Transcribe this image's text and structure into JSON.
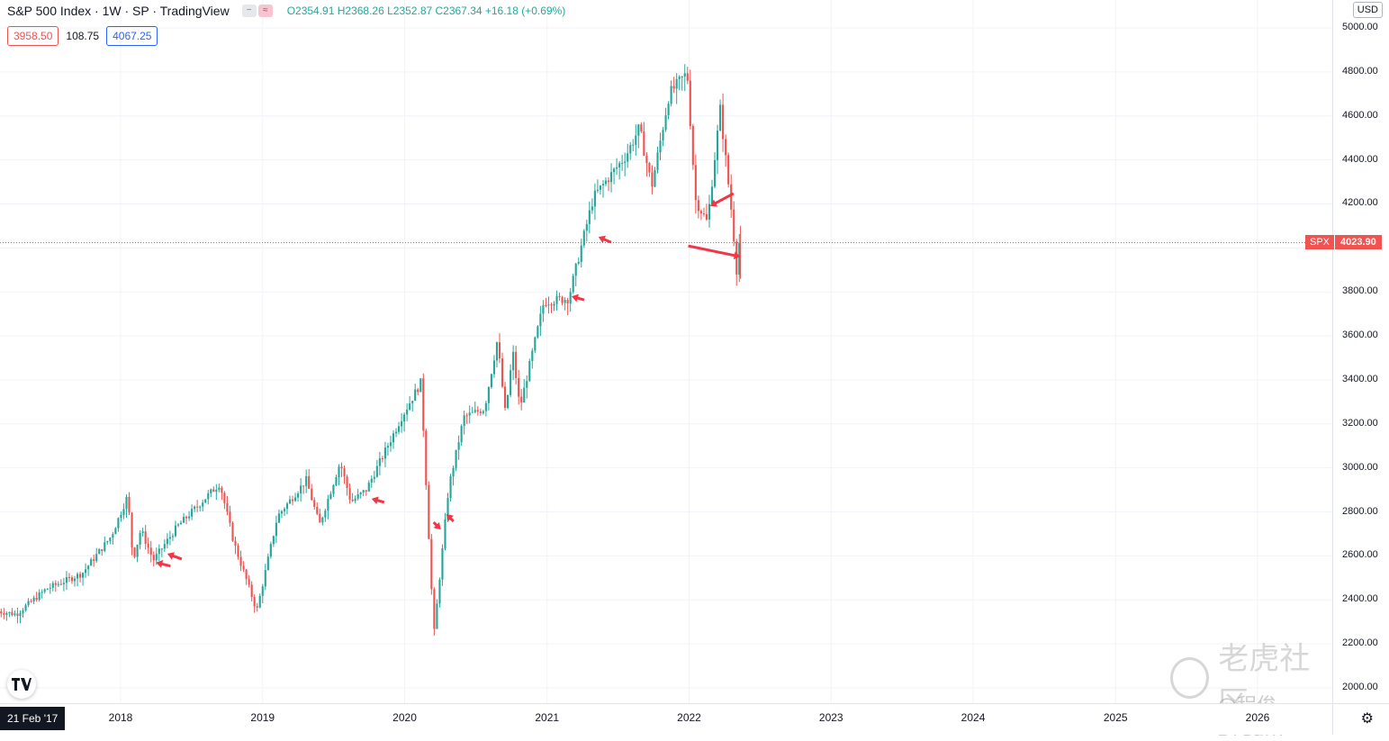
{
  "header": {
    "title": "S&P 500 Index · 1W · SP · TradingView",
    "ohlc": "O2354.91 H2368.26 L2352.87 C2367.34 +16.18 (+0.69%)"
  },
  "indicator": {
    "left": "3958.50",
    "mid": "108.75",
    "right": "4067.25"
  },
  "price_axis": {
    "currency": "USD",
    "current_symbol": "SPX",
    "current_value": "4023.90"
  },
  "time_axis": {
    "start_label": "21 Feb '17"
  },
  "watermark": {
    "main": "老虎社区",
    "sub": "@程俊Dream"
  },
  "colors": {
    "up": "#26a69a",
    "down": "#ef5350",
    "arrow": "#f23645",
    "grid": "#f0f3fa"
  },
  "chart_data": {
    "type": "candlestick",
    "instrument": "S&P 500 Index",
    "interval": "1W",
    "ylim": [
      2000,
      5000
    ],
    "yticks": [
      "5000.00",
      "4800.00",
      "4600.00",
      "4400.00",
      "4200.00",
      "4000.00",
      "3800.00",
      "3600.00",
      "3400.00",
      "3200.00",
      "3000.00",
      "2800.00",
      "2600.00",
      "2400.00",
      "2200.00",
      "2000.00"
    ],
    "xticks": [
      "2018",
      "2019",
      "2020",
      "2021",
      "2022",
      "2023",
      "2024",
      "2025",
      "2026"
    ],
    "last_price": 4023.9,
    "price_path": [
      [
        "2017-02-21",
        2350
      ],
      [
        "2017-04-15",
        2335
      ],
      [
        "2017-07-01",
        2450
      ],
      [
        "2017-10-01",
        2520
      ],
      [
        "2017-12-15",
        2690
      ],
      [
        "2018-01-26",
        2873
      ],
      [
        "2018-02-09",
        2580
      ],
      [
        "2018-03-01",
        2720
      ],
      [
        "2018-04-02",
        2580
      ],
      [
        "2018-06-01",
        2730
      ],
      [
        "2018-09-20",
        2930
      ],
      [
        "2018-10-26",
        2660
      ],
      [
        "2018-12-24",
        2350
      ],
      [
        "2019-02-15",
        2780
      ],
      [
        "2019-04-30",
        2945
      ],
      [
        "2019-06-03",
        2740
      ],
      [
        "2019-07-26",
        3025
      ],
      [
        "2019-08-23",
        2845
      ],
      [
        "2019-10-01",
        2900
      ],
      [
        "2019-12-31",
        3230
      ],
      [
        "2020-02-19",
        3390
      ],
      [
        "2020-03-23",
        2237
      ],
      [
        "2020-04-30",
        2910
      ],
      [
        "2020-06-08",
        3230
      ],
      [
        "2020-07-31",
        3270
      ],
      [
        "2020-09-02",
        3580
      ],
      [
        "2020-09-23",
        3240
      ],
      [
        "2020-10-12",
        3530
      ],
      [
        "2020-10-30",
        3270
      ],
      [
        "2020-12-31",
        3756
      ],
      [
        "2021-03-04",
        3770
      ],
      [
        "2021-05-07",
        4230
      ],
      [
        "2021-07-30",
        4420
      ],
      [
        "2021-09-02",
        4545
      ],
      [
        "2021-10-04",
        4280
      ],
      [
        "2021-11-18",
        4700
      ],
      [
        "2022-01-03",
        4796
      ],
      [
        "2022-01-24",
        4220
      ],
      [
        "2022-02-24",
        4115
      ],
      [
        "2022-03-29",
        4630
      ],
      [
        "2022-04-29",
        4130
      ],
      [
        "2022-05-12",
        3860
      ],
      [
        "2022-05-13",
        4023.9
      ]
    ],
    "annotations": [
      {
        "type": "arrow",
        "label": "",
        "date": "2018-04-02",
        "price": 2570
      },
      {
        "type": "arrow",
        "label": "",
        "date": "2018-05-01",
        "price": 2610
      },
      {
        "type": "arrow",
        "label": "",
        "date": "2019-10-08",
        "price": 2860
      },
      {
        "type": "arrow",
        "label": "",
        "date": "2020-04-03",
        "price": 2720
      },
      {
        "type": "arrow",
        "label": "",
        "date": "2020-04-17",
        "price": 2790
      },
      {
        "type": "arrow",
        "label": "",
        "date": "2021-03-05",
        "price": 3780
      },
      {
        "type": "arrow",
        "label": "",
        "date": "2021-05-13",
        "price": 4050
      },
      {
        "type": "arrow",
        "label": "",
        "date": "2022-02-24",
        "price": 4190
      },
      {
        "type": "arrow",
        "label": "",
        "date": "2022-05-13",
        "price": 3960
      }
    ]
  }
}
